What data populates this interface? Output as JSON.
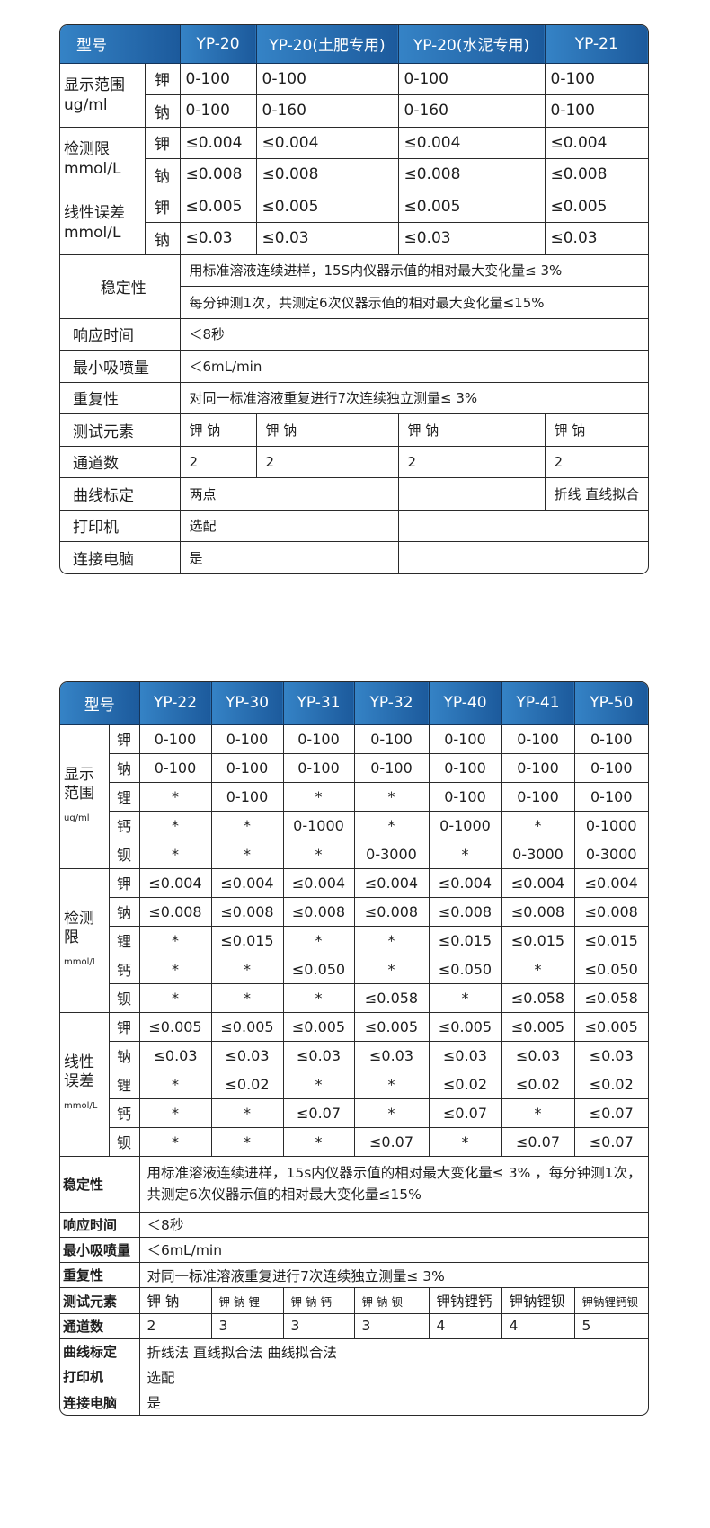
{
  "colors": {
    "header_bg_start": "#3583c6",
    "header_bg_end": "#1c5a9c",
    "header_text": "#ffffff",
    "border": "#2a2a2a"
  },
  "table1": {
    "header": [
      "型号",
      "YP-20",
      "YP-20(土肥专用)",
      "YP-20(水泥专用)",
      "YP-21"
    ],
    "groups": [
      {
        "label": "显示范围",
        "unit": "ug/ml",
        "rows": [
          {
            "element": "钾",
            "values": [
              "0-100",
              "0-100",
              "0-100",
              "0-100"
            ]
          },
          {
            "element": "钠",
            "values": [
              "0-100",
              "0-160",
              "0-160",
              "0-100"
            ]
          }
        ]
      },
      {
        "label": "检测限",
        "unit": "mmol/L",
        "rows": [
          {
            "element": "钾",
            "values": [
              "≤0.004",
              "≤0.004",
              "≤0.004",
              "≤0.004"
            ]
          },
          {
            "element": "钠",
            "values": [
              "≤0.008",
              "≤0.008",
              "≤0.008",
              "≤0.008"
            ]
          }
        ]
      },
      {
        "label": "线性误差",
        "unit": "mmol/L",
        "rows": [
          {
            "element": "钾",
            "values": [
              "≤0.005",
              "≤0.005",
              "≤0.005",
              "≤0.005"
            ]
          },
          {
            "element": "钠",
            "values": [
              "≤0.03",
              "≤0.03",
              "≤0.03",
              "≤0.03"
            ]
          }
        ]
      }
    ],
    "stability": {
      "label": "稳定性",
      "lines": [
        "用标准溶液连续进样，15S内仪器示值的相对最大变化量≤ 3%",
        "每分钟测1次，共测定6次仪器示值的相对最大变化量≤15%"
      ]
    },
    "rows": [
      {
        "label": "响应时间",
        "cells": [
          {
            "text": "＜8秒",
            "span": 4
          }
        ]
      },
      {
        "label": "最小吸喷量",
        "cells": [
          {
            "text": "＜6mL/min",
            "span": 4
          }
        ]
      },
      {
        "label": "重复性",
        "cells": [
          {
            "text": "对同一标准溶液重复进行7次连续独立测量≤ 3%",
            "span": 4
          }
        ]
      },
      {
        "label": "测试元素",
        "cells": [
          {
            "text": "钾 钠",
            "span": 1
          },
          {
            "text": "钾 钠",
            "span": 1
          },
          {
            "text": "钾 钠",
            "span": 1
          },
          {
            "text": "钾 钠",
            "span": 1
          }
        ]
      },
      {
        "label": "通道数",
        "cells": [
          {
            "text": "2",
            "span": 1
          },
          {
            "text": "2",
            "span": 1
          },
          {
            "text": "2",
            "span": 1
          },
          {
            "text": "2",
            "span": 1
          }
        ]
      },
      {
        "label": "曲线标定",
        "cells": [
          {
            "text": "两点",
            "span": 2
          },
          {
            "text": "",
            "span": 1
          },
          {
            "text": "折线 直线拟合",
            "span": 1
          }
        ]
      },
      {
        "label": "打印机",
        "cells": [
          {
            "text": "选配",
            "span": 2
          },
          {
            "text": "",
            "span": 2
          }
        ]
      },
      {
        "label": "连接电脑",
        "cells": [
          {
            "text": "是",
            "span": 2
          },
          {
            "text": "",
            "span": 2
          }
        ]
      }
    ]
  },
  "table2": {
    "header": [
      "型号",
      "YP-22",
      "YP-30",
      "YP-31",
      "YP-32",
      "YP-40",
      "YP-41",
      "YP-50"
    ],
    "groups": [
      {
        "label": [
          "显示",
          "范围"
        ],
        "unit": "ug/ml",
        "rows": [
          {
            "element": "钾",
            "values": [
              "0-100",
              "0-100",
              "0-100",
              "0-100",
              "0-100",
              "0-100",
              "0-100"
            ]
          },
          {
            "element": "钠",
            "values": [
              "0-100",
              "0-100",
              "0-100",
              "0-100",
              "0-100",
              "0-100",
              "0-100"
            ]
          },
          {
            "element": "锂",
            "values": [
              "*",
              "0-100",
              "*",
              "*",
              "0-100",
              "0-100",
              "0-100"
            ]
          },
          {
            "element": "钙",
            "values": [
              "*",
              "*",
              "0-1000",
              "*",
              "0-1000",
              "*",
              "0-1000"
            ]
          },
          {
            "element": "钡",
            "values": [
              "*",
              "*",
              "*",
              "0-3000",
              "*",
              "0-3000",
              "0-3000"
            ]
          }
        ]
      },
      {
        "label": [
          "检测",
          "限"
        ],
        "unit": "mmol/L",
        "rows": [
          {
            "element": "钾",
            "values": [
              "≤0.004",
              "≤0.004",
              "≤0.004",
              "≤0.004",
              "≤0.004",
              "≤0.004",
              "≤0.004"
            ]
          },
          {
            "element": "钠",
            "values": [
              "≤0.008",
              "≤0.008",
              "≤0.008",
              "≤0.008",
              "≤0.008",
              "≤0.008",
              "≤0.008"
            ]
          },
          {
            "element": "锂",
            "values": [
              "*",
              "≤0.015",
              "*",
              "*",
              "≤0.015",
              "≤0.015",
              "≤0.015"
            ]
          },
          {
            "element": "钙",
            "values": [
              "*",
              "*",
              "≤0.050",
              "*",
              "≤0.050",
              "*",
              "≤0.050"
            ]
          },
          {
            "element": "钡",
            "values": [
              "*",
              "*",
              "*",
              "≤0.058",
              "*",
              "≤0.058",
              "≤0.058"
            ]
          }
        ]
      },
      {
        "label": [
          "线性",
          "误差"
        ],
        "unit": "mmol/L",
        "rows": [
          {
            "element": "钾",
            "values": [
              "≤0.005",
              "≤0.005",
              "≤0.005",
              "≤0.005",
              "≤0.005",
              "≤0.005",
              "≤0.005"
            ]
          },
          {
            "element": "钠",
            "values": [
              "≤0.03",
              "≤0.03",
              "≤0.03",
              "≤0.03",
              "≤0.03",
              "≤0.03",
              "≤0.03"
            ]
          },
          {
            "element": "锂",
            "values": [
              "*",
              "≤0.02",
              "*",
              "*",
              "≤0.02",
              "≤0.02",
              "≤0.02"
            ]
          },
          {
            "element": "钙",
            "values": [
              "*",
              "*",
              "≤0.07",
              "*",
              "≤0.07",
              "*",
              "≤0.07"
            ]
          },
          {
            "element": "钡",
            "values": [
              "*",
              "*",
              "*",
              "≤0.07",
              "*",
              "≤0.07",
              "≤0.07"
            ]
          }
        ]
      }
    ],
    "stability": {
      "label": "稳定性",
      "text": "用标准溶液连续进样，15s内仪器示值的相对最大变化量≤ 3% ，每分钟测1次，共测定6次仪器示值的相对最大变化量≤15%"
    },
    "rows": [
      {
        "label": "响应时间",
        "cells": [
          {
            "text": "＜8秒",
            "span": 7
          }
        ]
      },
      {
        "label": "最小吸喷量",
        "cells": [
          {
            "text": "＜6mL/min",
            "span": 7
          }
        ]
      },
      {
        "label": "重复性",
        "cells": [
          {
            "text": "对同一标准溶液重复进行7次连续独立测量≤ 3%",
            "span": 7
          }
        ]
      },
      {
        "label": "测试元素",
        "cells": [
          {
            "text": "钾 钠",
            "span": 1
          },
          {
            "text": "钾 钠 锂",
            "span": 1
          },
          {
            "text": "钾 钠 钙",
            "span": 1
          },
          {
            "text": "钾 钠 钡",
            "span": 1
          },
          {
            "text": "钾钠锂钙",
            "span": 1
          },
          {
            "text": "钾钠锂钡",
            "span": 1
          },
          {
            "text": "钾钠锂钙钡",
            "span": 1
          }
        ]
      },
      {
        "label": "通道数",
        "cells": [
          {
            "text": "2",
            "span": 1
          },
          {
            "text": "3",
            "span": 1
          },
          {
            "text": "3",
            "span": 1
          },
          {
            "text": "3",
            "span": 1
          },
          {
            "text": "4",
            "span": 1
          },
          {
            "text": "4",
            "span": 1
          },
          {
            "text": "5",
            "span": 1
          }
        ]
      },
      {
        "label": "曲线标定",
        "cells": [
          {
            "text": "折线法  直线拟合法 曲线拟合法",
            "span": 7
          }
        ]
      },
      {
        "label": "打印机",
        "cells": [
          {
            "text": "选配",
            "span": 7
          }
        ]
      },
      {
        "label": "连接电脑",
        "cells": [
          {
            "text": "是",
            "span": 7
          }
        ]
      }
    ]
  }
}
